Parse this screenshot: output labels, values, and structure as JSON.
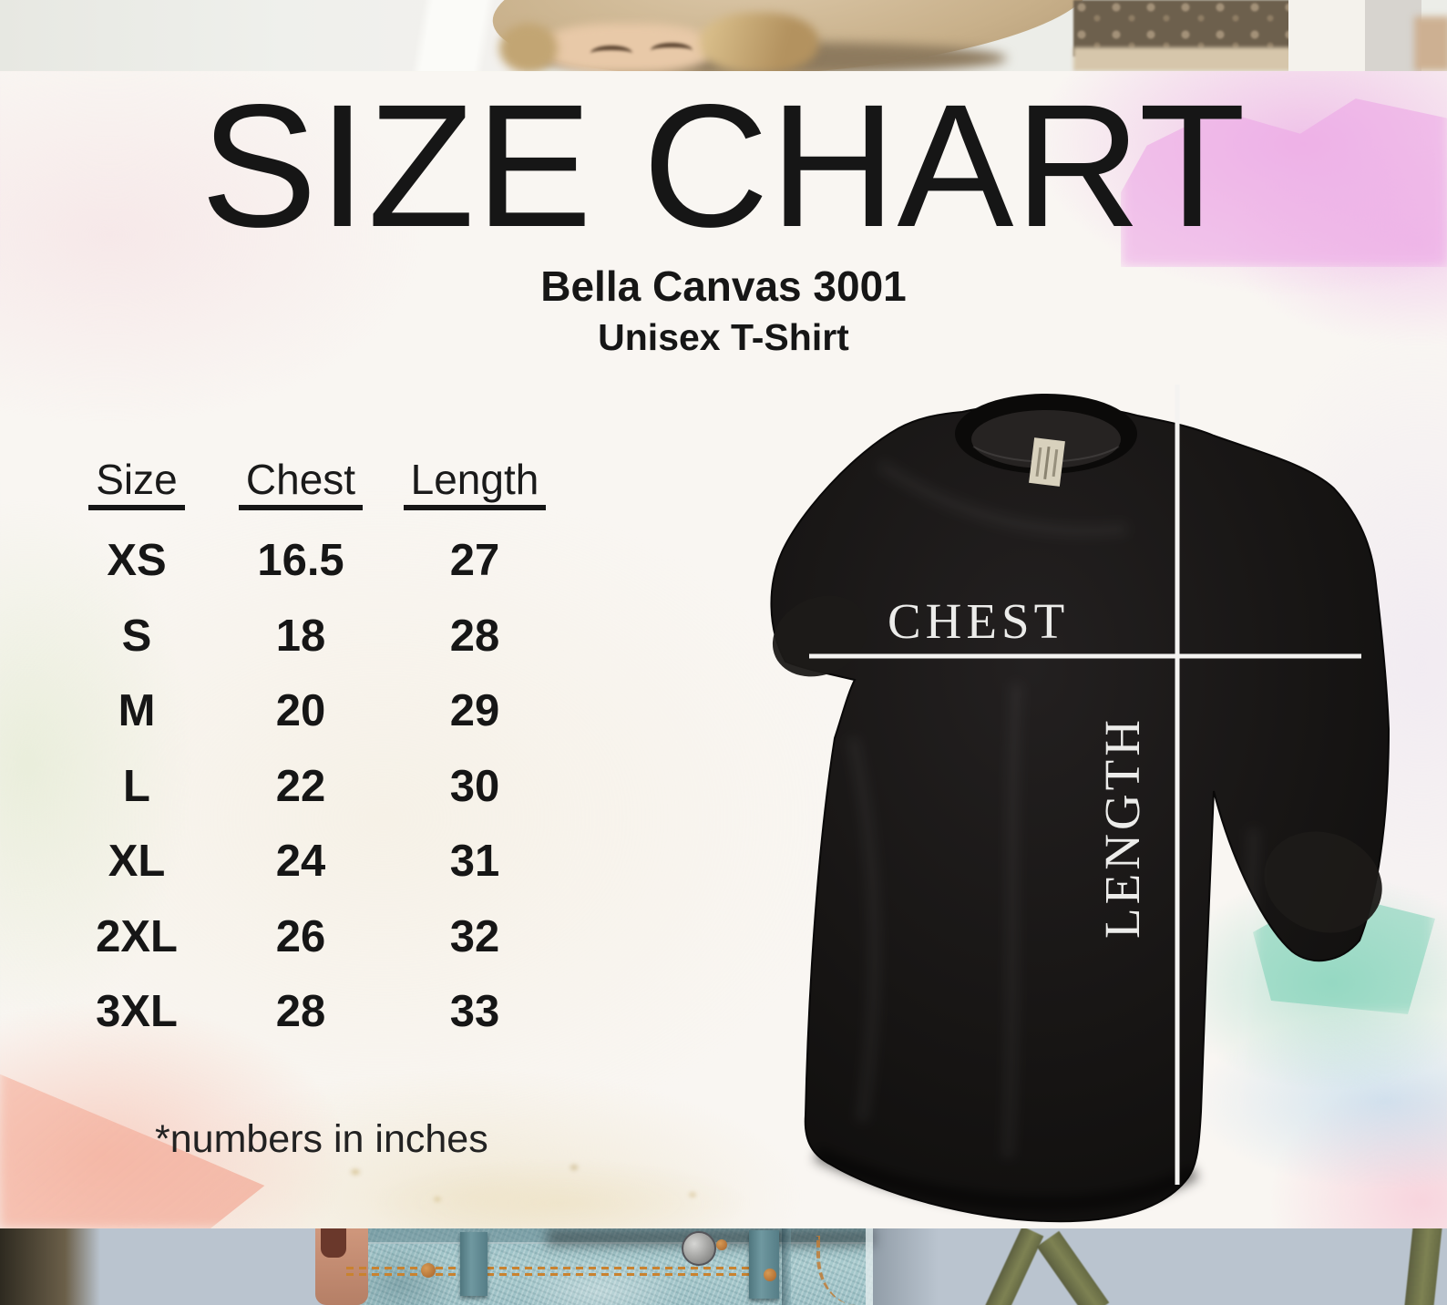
{
  "page": {
    "title": "SIZE CHART",
    "subtitle_line1": "Bella Canvas 3001",
    "subtitle_line2": "Unisex T-Shirt",
    "footnote": "*numbers in inches"
  },
  "table": {
    "headers": [
      "Size",
      "Chest",
      "Length"
    ],
    "rows": [
      [
        "XS",
        "16.5",
        "27"
      ],
      [
        "S",
        "18",
        "28"
      ],
      [
        "M",
        "20",
        "29"
      ],
      [
        "L",
        "22",
        "30"
      ],
      [
        "XL",
        "24",
        "31"
      ],
      [
        "2XL",
        "26",
        "32"
      ],
      [
        "3XL",
        "28",
        "33"
      ]
    ]
  },
  "shirt_diagram": {
    "chest_label": "CHEST",
    "length_label": "LENGTH"
  },
  "colors": {
    "text": "#1a1a1a",
    "tee_black": "#141210",
    "measure_line": "#f4f3f1",
    "watercolor_magenta": "#eba6e2",
    "watercolor_salmon": "#f3a893",
    "watercolor_teal": "#83d0b9",
    "denim_blue": "#9fc2c6"
  },
  "chart_data": {
    "type": "table",
    "title": "SIZE CHART",
    "subtitle": "Bella Canvas 3001 Unisex T-Shirt",
    "columns": [
      "Size",
      "Chest",
      "Length"
    ],
    "units": "inches",
    "rows": [
      [
        "XS",
        16.5,
        27
      ],
      [
        "S",
        18,
        28
      ],
      [
        "M",
        20,
        29
      ],
      [
        "L",
        22,
        30
      ],
      [
        "XL",
        24,
        31
      ],
      [
        "2XL",
        26,
        32
      ],
      [
        "3XL",
        28,
        33
      ]
    ],
    "footnote": "*numbers in inches",
    "diagram_labels": [
      "CHEST",
      "LENGTH"
    ]
  }
}
